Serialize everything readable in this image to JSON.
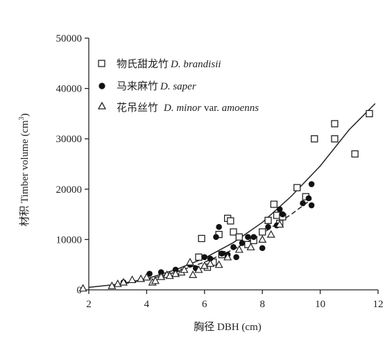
{
  "chart_data": {
    "type": "scatter",
    "xlabel": "胸径 DBH (cm)",
    "ylabel_main": "材积 Timber volume (cm",
    "ylabel_sup": "3",
    "ylabel_close": ")",
    "xlim": [
      2,
      12
    ],
    "ylim": [
      0,
      50000
    ],
    "xticks": [
      "2",
      "4",
      "6",
      "8",
      "10",
      "12"
    ],
    "yticks": [
      "0",
      "10000",
      "20000",
      "30000",
      "40000",
      "50000"
    ],
    "legend_position": "top-left",
    "series": [
      {
        "name_cn": "物氏甜龙竹",
        "name_sci": "D. brandisii",
        "marker": "square-open",
        "x": [
          5.8,
          5.9,
          6.1,
          6.3,
          6.5,
          6.6,
          6.8,
          6.9,
          7.0,
          7.2,
          7.5,
          7.7,
          8.0,
          8.2,
          8.4,
          8.5,
          8.6,
          8.7,
          9.2,
          9.5,
          9.8,
          10.5,
          10.5,
          11.2,
          11.7
        ],
        "y": [
          6500,
          10200,
          4500,
          5500,
          11000,
          7000,
          14200,
          13700,
          11500,
          10500,
          9000,
          9800,
          11500,
          13800,
          17000,
          14800,
          13200,
          14500,
          20300,
          18500,
          30000,
          30000,
          33000,
          27000,
          35000
        ]
      },
      {
        "name_cn": "马来麻竹",
        "name_sci": "D. saper",
        "marker": "circle-filled",
        "x": [
          3.2,
          4.1,
          4.5,
          5.0,
          5.5,
          5.7,
          6.0,
          6.2,
          6.4,
          6.5,
          6.6,
          6.8,
          7.0,
          7.1,
          7.3,
          7.5,
          7.7,
          8.0,
          8.2,
          8.5,
          8.6,
          8.7,
          9.4,
          9.6,
          9.7,
          9.7
        ],
        "y": [
          1500,
          3200,
          3500,
          4000,
          5000,
          4300,
          6500,
          6200,
          10500,
          12500,
          7200,
          7000,
          8500,
          6500,
          9300,
          10500,
          10500,
          8300,
          12500,
          12800,
          16000,
          15000,
          17200,
          18200,
          16800,
          21000
        ]
      },
      {
        "name_cn": "花吊丝竹",
        "name_sci_1": "D. minor",
        "name_sci_2": " var. ",
        "name_sci_3": "amoenns",
        "marker": "triangle-open",
        "x": [
          1.8,
          2.8,
          3.0,
          3.2,
          3.5,
          3.8,
          4.0,
          4.2,
          4.3,
          4.5,
          4.7,
          4.8,
          5.0,
          5.2,
          5.3,
          5.5,
          5.6,
          5.8,
          6.0,
          6.2,
          6.5,
          6.8,
          7.2,
          7.6,
          8.0,
          8.3,
          8.6
        ],
        "y": [
          300,
          800,
          1200,
          1500,
          2000,
          2200,
          2500,
          1500,
          1800,
          2600,
          3000,
          2800,
          3200,
          3500,
          4000,
          5500,
          3000,
          4000,
          4800,
          5200,
          5000,
          6500,
          8000,
          8500,
          10000,
          11000,
          13000
        ]
      }
    ],
    "fits": [
      {
        "style": "solid",
        "x": [
          2,
          3,
          4,
          5,
          6,
          7,
          8,
          9,
          10,
          11,
          11.9
        ],
        "y": [
          500,
          1100,
          2200,
          4000,
          6300,
          9400,
          13400,
          18600,
          24600,
          31800,
          37000
        ]
      },
      {
        "style": "dashed",
        "x": [
          2.7,
          3,
          4,
          5,
          6,
          7,
          8,
          9,
          9.7
        ],
        "y": [
          900,
          1000,
          2000,
          3500,
          5500,
          8000,
          11200,
          15000,
          18000
        ]
      }
    ]
  }
}
